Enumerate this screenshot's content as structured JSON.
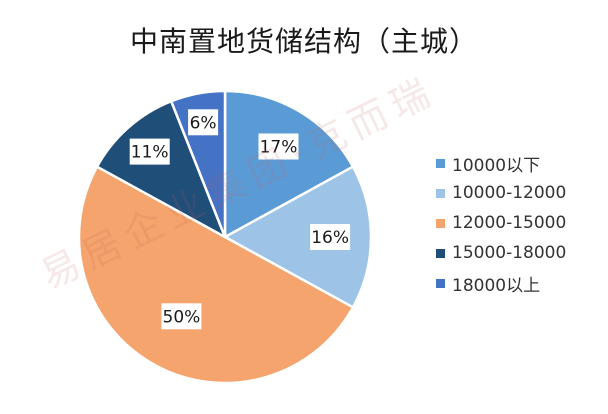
{
  "chart_data": {
    "type": "pie",
    "title": "中南置地货储结构（主城）",
    "categories": [
      "10000以下",
      "10000-12000",
      "12000-15000",
      "15000-18000",
      "18000以上"
    ],
    "values": [
      17,
      16,
      50,
      11,
      6
    ],
    "labels": [
      "17%",
      "16%",
      "50%",
      "11%",
      "6%"
    ],
    "colors": [
      "#5b9bd5",
      "#9dc3e6",
      "#f4a46c",
      "#1f4e79",
      "#4472c4"
    ],
    "legend_position": "right"
  },
  "watermark": "易居企业集团·克而瑞"
}
